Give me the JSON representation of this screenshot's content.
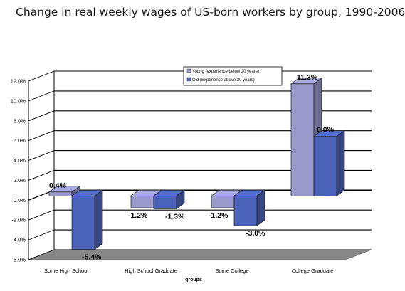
{
  "chart_data": {
    "type": "bar",
    "title": "Change in real weekly wages of US-born workers by group, 1990-2006",
    "xlabel": "groups",
    "ylabel": "",
    "ylim": [
      -6,
      12
    ],
    "yticks": [
      "12.0%",
      "10.0%",
      "8.0%",
      "6.0%",
      "4.0%",
      "2.0%",
      "0.0%",
      "-2.0%",
      "-4.0%",
      "-6.0%"
    ],
    "categories": [
      "Some High School",
      "High School Graduate",
      "Some College",
      "College Graduate"
    ],
    "series": [
      {
        "name": "Young (experience below 20 years)",
        "values": [
          0.4,
          -1.2,
          -1.2,
          11.3
        ],
        "labels": [
          "0.4%",
          "-1.2%",
          "-1.2%",
          "11.3%"
        ],
        "color": "#9999cc"
      },
      {
        "name": "Old (Experience above 20 years)",
        "values": [
          -5.4,
          -1.3,
          -3.0,
          6.0
        ],
        "labels": [
          "-5.4%",
          "-1.3%",
          "-3.0%",
          "6.0%"
        ],
        "color": "#4a63b8"
      }
    ],
    "grid": true,
    "legend_position": "top-right",
    "style": "3d-bar"
  }
}
